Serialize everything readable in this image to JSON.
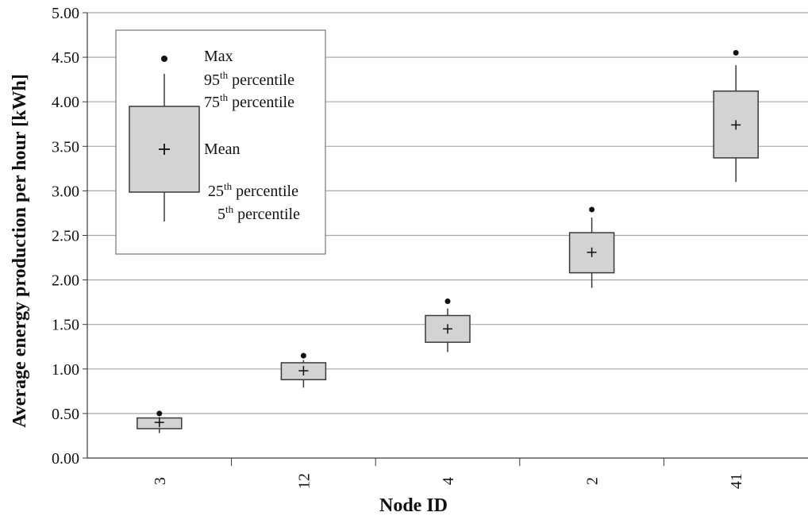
{
  "chart_data": {
    "type": "box",
    "title": "",
    "xlabel": "Node ID",
    "ylabel": "Average energy production per hour [kWh]",
    "ylim": [
      0,
      5
    ],
    "yticks": [
      "0.00",
      "0.50",
      "1.00",
      "1.50",
      "2.00",
      "2.50",
      "3.00",
      "3.50",
      "4.00",
      "4.50",
      "5.00"
    ],
    "grid": true,
    "categories": [
      "3",
      "12",
      "4",
      "2",
      "41"
    ],
    "boxes": [
      {
        "category": "3",
        "max": 0.5,
        "p95": 0.46,
        "p75": 0.45,
        "mean": 0.4,
        "p25": 0.33,
        "p5": 0.28
      },
      {
        "category": "12",
        "max": 1.15,
        "p95": 1.1,
        "p75": 1.07,
        "mean": 0.98,
        "p25": 0.88,
        "p5": 0.79
      },
      {
        "category": "4",
        "max": 1.76,
        "p95": 1.68,
        "p75": 1.6,
        "mean": 1.45,
        "p25": 1.3,
        "p5": 1.19
      },
      {
        "category": "2",
        "max": 2.79,
        "p95": 2.7,
        "p75": 2.53,
        "mean": 2.31,
        "p25": 2.08,
        "p5": 1.91
      },
      {
        "category": "41",
        "max": 4.55,
        "p95": 4.41,
        "p75": 4.12,
        "mean": 3.74,
        "p25": 3.37,
        "p5": 3.1
      }
    ],
    "legend": {
      "placement": "top-left",
      "entries": [
        {
          "base": "Max",
          "sup": "",
          "rest": ""
        },
        {
          "base": "95",
          "sup": "th",
          "rest": " percentile"
        },
        {
          "base": "75",
          "sup": "th",
          "rest": " percentile"
        },
        {
          "base": "Mean",
          "sup": "",
          "rest": ""
        },
        {
          "base": "25",
          "sup": "th",
          "rest": " percentile"
        },
        {
          "base": "5",
          "sup": "th",
          "rest": " percentile"
        }
      ]
    },
    "colors": {
      "box_fill": "#d3d3d3",
      "line": "#3a3a3a",
      "grid": "#a8a8a8",
      "text": "#111111"
    }
  }
}
